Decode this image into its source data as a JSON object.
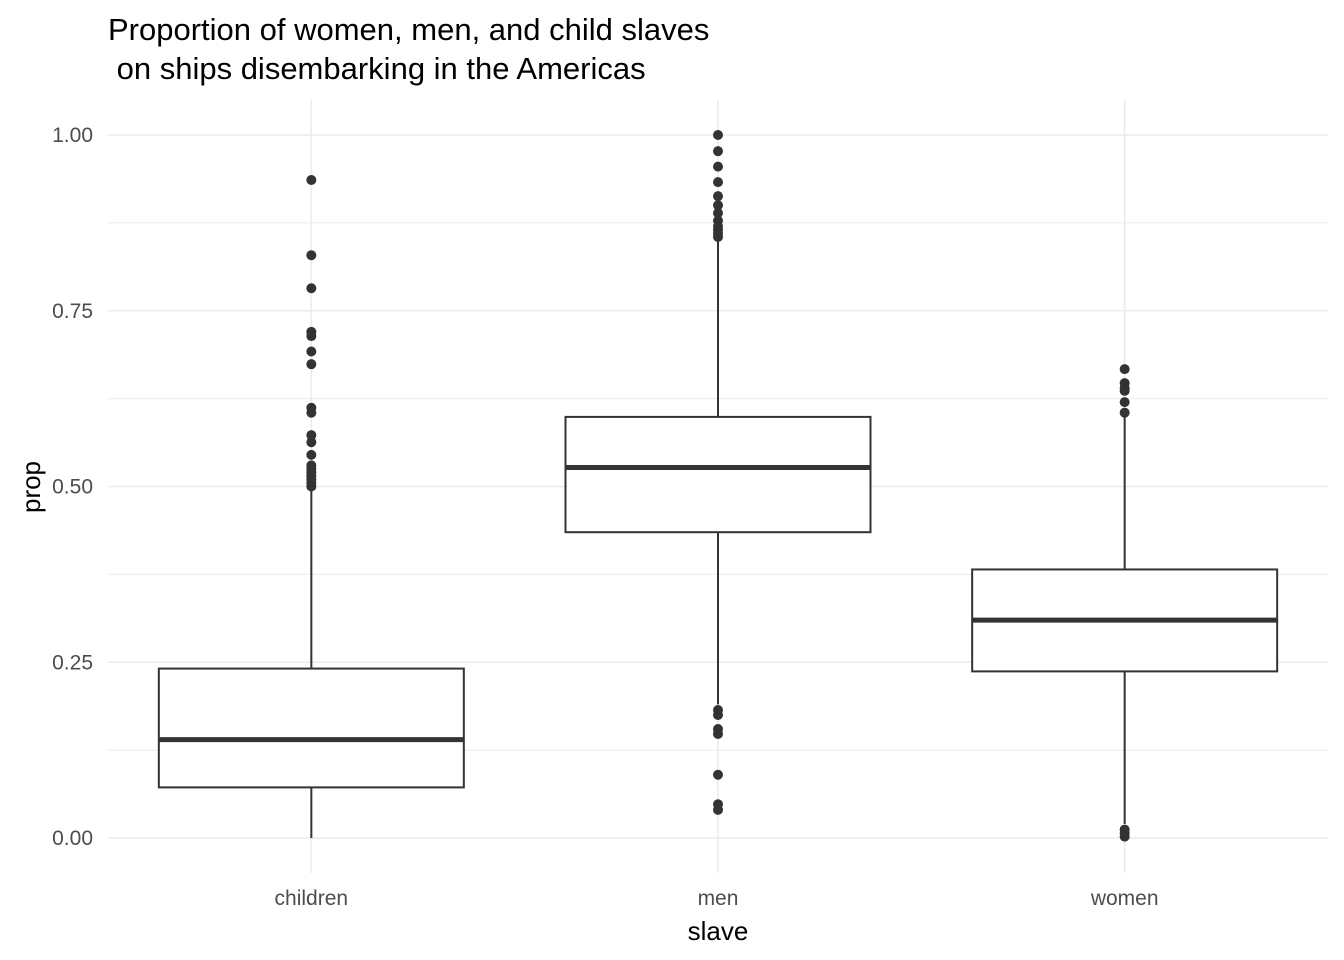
{
  "chart_data": {
    "type": "boxplot",
    "title_lines": [
      "Proportion of women, men, and child slaves",
      " on ships disembarking in the Americas"
    ],
    "xlabel": "slave",
    "ylabel": "prop",
    "categories": [
      "children",
      "men",
      "women"
    ],
    "y_ticks": [
      0.0,
      0.25,
      0.5,
      0.75,
      1.0
    ],
    "y_tick_labels": [
      "0.00",
      "0.25",
      "0.50",
      "0.75",
      "1.00"
    ],
    "ylim": [
      -0.05,
      1.05
    ],
    "grid": true,
    "legend": "none",
    "colors": {
      "box_stroke": "#333333",
      "outlier": "#333333",
      "grid": "#ebebeb",
      "background": "#ffffff"
    },
    "boxes": [
      {
        "category": "children",
        "whisker_low": 0.0,
        "q1": 0.072,
        "median": 0.14,
        "q3": 0.241,
        "whisker_high": 0.494,
        "outliers": [
          0.936,
          0.829,
          0.782,
          0.72,
          0.714,
          0.692,
          0.674,
          0.612,
          0.605,
          0.573,
          0.563,
          0.545,
          0.53,
          0.525,
          0.52,
          0.515,
          0.51,
          0.505,
          0.5
        ]
      },
      {
        "category": "men",
        "whisker_low": 0.19,
        "q1": 0.435,
        "median": 0.527,
        "q3": 0.599,
        "whisker_high": 0.85,
        "outliers": [
          1.0,
          0.977,
          0.955,
          0.933,
          0.913,
          0.9,
          0.889,
          0.878,
          0.87,
          0.865,
          0.86,
          0.855,
          0.182,
          0.175,
          0.155,
          0.148,
          0.09,
          0.048,
          0.04
        ]
      },
      {
        "category": "women",
        "whisker_low": 0.02,
        "q1": 0.237,
        "median": 0.31,
        "q3": 0.382,
        "whisker_high": 0.602,
        "outliers": [
          0.667,
          0.647,
          0.64,
          0.636,
          0.62,
          0.605,
          0.012,
          0.007,
          0.002
        ]
      }
    ]
  }
}
